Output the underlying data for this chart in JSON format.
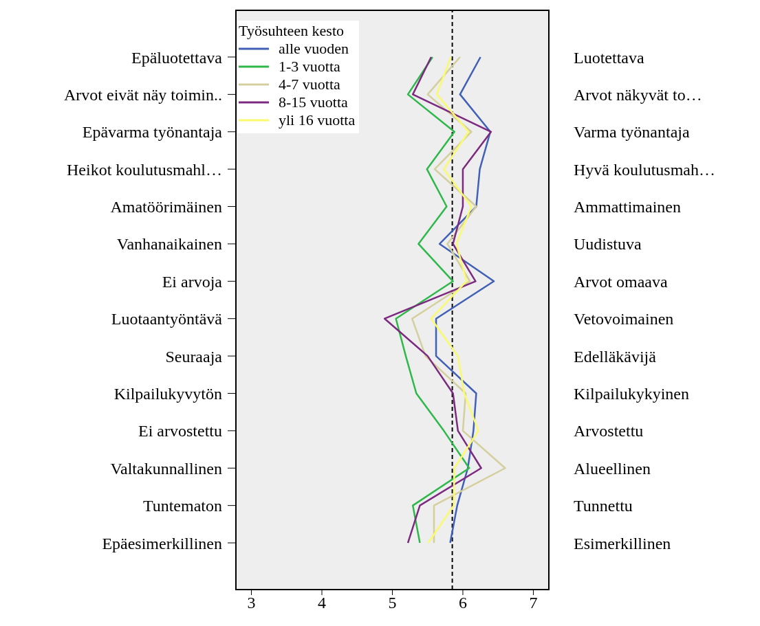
{
  "chart_data": {
    "type": "line",
    "categories": [
      "Epäluotettava",
      "Arvot eivät näy toimin..",
      "Epävarma työnantaja",
      "Heikot koulutusmahl…",
      "Amatöörimäinen",
      "Vanhanaikainen",
      "Ei arvoja",
      "Luotaantyöntävä",
      "Seuraaja",
      "Kilpailukyvytön",
      "Ei arvostettu",
      "Valtakunnallinen",
      "Tuntematon",
      "Epäesimerkillinen"
    ],
    "y2_categories": [
      "Luotettava",
      "Arvot näkyvät to…",
      "Varma työnantaja",
      "Hyvä koulutusmah…",
      "Ammattimainen",
      "Uudistuva",
      "Arvot omaava",
      "Vetovoimainen",
      "Edelläkävijä",
      "Kilpailukykyinen",
      "Arvostettu",
      "Alueellinen",
      "Tunnettu",
      "Esimerkillinen"
    ],
    "orientation": "horizontal",
    "legend_title": "Työsuhteen kesto",
    "legend": "top left",
    "marker": "none",
    "line_style": "solid",
    "xlim": [
      2.78,
      7.22
    ],
    "xticks": [
      3,
      4,
      5,
      6,
      7
    ],
    "ref_lines": [
      {
        "axis": "x",
        "value": 5.85,
        "line_style": "dashed",
        "color": "#000000"
      }
    ],
    "series": [
      {
        "name": "alle vuoden",
        "color": "#4060b8",
        "values": [
          6.25,
          5.96,
          6.39,
          6.24,
          6.19,
          5.67,
          6.44,
          5.62,
          5.62,
          6.19,
          6.15,
          6.07,
          5.92,
          5.82
        ]
      },
      {
        "name": "1-3 vuotta",
        "color": "#2eb84a",
        "values": [
          5.57,
          5.22,
          5.88,
          5.49,
          5.77,
          5.37,
          5.86,
          5.05,
          5.19,
          5.34,
          5.73,
          6.09,
          5.29,
          5.39
        ]
      },
      {
        "name": "4-7 vuotta",
        "color": "#d4cf9c",
        "values": [
          5.96,
          5.5,
          6.12,
          5.6,
          6.19,
          5.78,
          6.1,
          5.28,
          5.47,
          6.04,
          6.0,
          6.6,
          5.59,
          5.59
        ]
      },
      {
        "name": "8-15 vuotta",
        "color": "#7b2a7f",
        "values": [
          5.55,
          5.29,
          6.4,
          6.0,
          6.0,
          5.86,
          6.18,
          4.89,
          5.5,
          5.86,
          5.93,
          6.26,
          5.39,
          5.22
        ]
      },
      {
        "name": "yli 16 vuotta",
        "color": "#fafa6e",
        "values": [
          5.83,
          5.63,
          6.08,
          5.73,
          6.12,
          5.91,
          6.05,
          5.55,
          5.93,
          6.02,
          6.22,
          5.88,
          5.87,
          5.51
        ]
      }
    ]
  }
}
